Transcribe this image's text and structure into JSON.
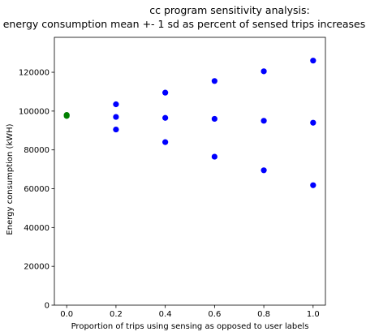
{
  "chart_data": {
    "type": "scatter",
    "title": "cc program sensitivity analysis:",
    "subtitle": "energy consumption mean +- 1 sd as percent of sensed trips increases",
    "xlabel": "Proportion of trips using sensing as opposed to user labels",
    "ylabel": "Energy consumption (kWH)",
    "xlim": [
      -0.05,
      1.05
    ],
    "ylim": [
      0,
      138000
    ],
    "xticks": [
      0.0,
      0.2,
      0.4,
      0.6,
      0.8,
      1.0
    ],
    "xtick_labels": [
      "0.0",
      "0.2",
      "0.4",
      "0.6",
      "0.8",
      "1.0"
    ],
    "yticks": [
      0,
      20000,
      40000,
      60000,
      80000,
      100000,
      120000
    ],
    "ytick_labels": [
      "0",
      "20000",
      "40000",
      "60000",
      "80000",
      "100000",
      "120000"
    ],
    "grid": false,
    "series": [
      {
        "color": "#0000ff",
        "points": [
          [
            0.2,
            103500
          ],
          [
            0.2,
            97000
          ],
          [
            0.2,
            90500
          ],
          [
            0.4,
            109500
          ],
          [
            0.4,
            96500
          ],
          [
            0.4,
            84000
          ],
          [
            0.6,
            115500
          ],
          [
            0.6,
            96000
          ],
          [
            0.6,
            76500
          ],
          [
            0.8,
            120500
          ],
          [
            0.8,
            95000
          ],
          [
            0.8,
            69500
          ],
          [
            1.0,
            126000
          ],
          [
            1.0,
            94000
          ],
          [
            1.0,
            61800
          ]
        ]
      },
      {
        "color": "#008000",
        "points": [
          [
            0.0,
            97500
          ],
          [
            0.0,
            98000
          ]
        ]
      }
    ]
  }
}
